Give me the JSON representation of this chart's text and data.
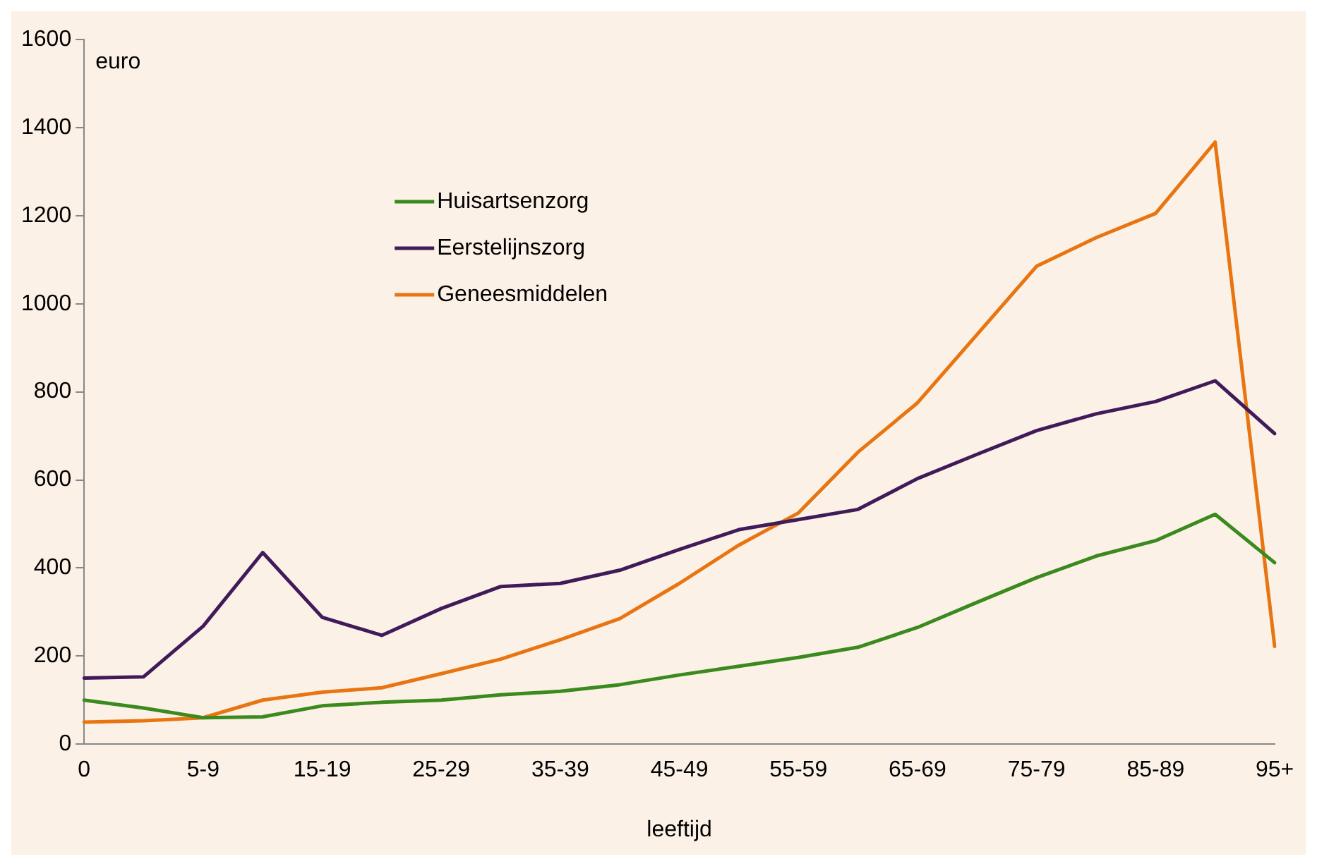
{
  "chart_data": {
    "type": "line",
    "xlabel": "leeftijd",
    "ylabel": "euro",
    "categories": [
      "0",
      null,
      "5-9",
      null,
      "15-19",
      null,
      "25-29",
      null,
      "35-39",
      null,
      "45-49",
      null,
      "55-59",
      null,
      "65-69",
      null,
      "75-79",
      null,
      "85-89",
      null,
      "95+"
    ],
    "series": [
      {
        "name": "Huisartsenzorg",
        "color": "#3a8a1e",
        "values": [
          100,
          82,
          60,
          62,
          87,
          95,
          100,
          112,
          120,
          135,
          157,
          177,
          197,
          220,
          265,
          322,
          378,
          427,
          462,
          522,
          412
        ]
      },
      {
        "name": "Eerstelijnszorg",
        "color": "#3f1b5a",
        "values": [
          150,
          153,
          268,
          435,
          288,
          247,
          308,
          358,
          365,
          395,
          442,
          487,
          510,
          533,
          603,
          658,
          712,
          750,
          778,
          825,
          705
        ]
      },
      {
        "name": "Geneesmiddelen",
        "color": "#e87511",
        "values": [
          50,
          53,
          60,
          100,
          118,
          128,
          160,
          193,
          237,
          285,
          365,
          452,
          525,
          663,
          775,
          930,
          1085,
          1150,
          1205,
          1367,
          222
        ]
      }
    ],
    "ylim": [
      0,
      1600
    ],
    "yticks": [
      0,
      200,
      400,
      600,
      800,
      1000,
      1200,
      1400,
      1600
    ],
    "grid": false,
    "legend": "top left",
    "marker": "none",
    "line_style": "solid"
  }
}
